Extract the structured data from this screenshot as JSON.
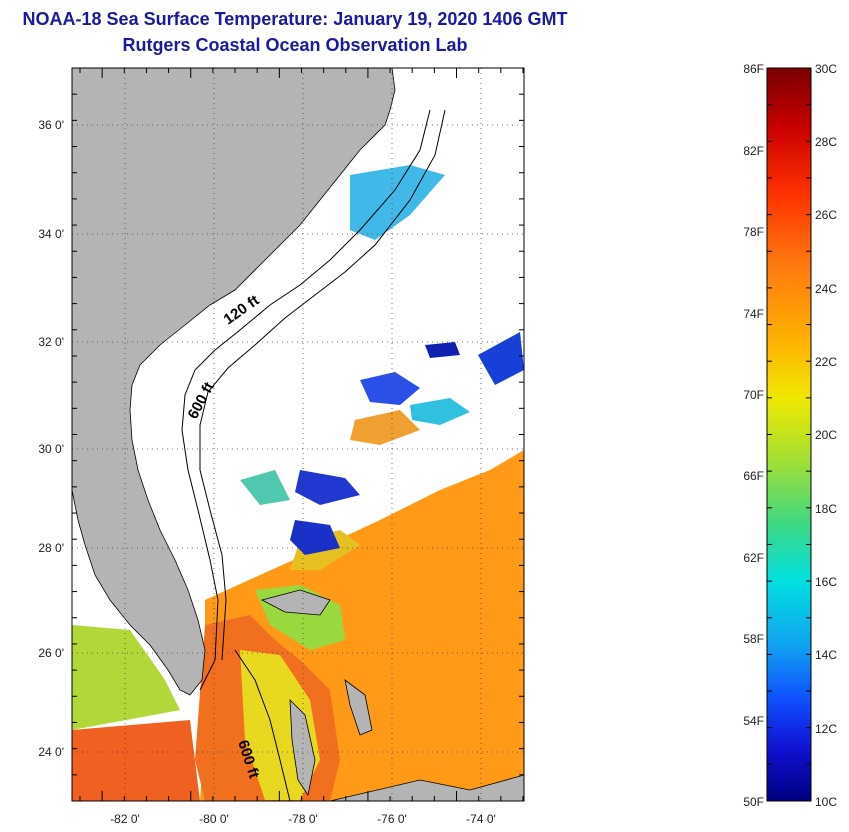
{
  "title": "NOAA-18 Sea Surface Temperature:  January 19, 2020 1406 GMT",
  "subtitle": "Rutgers Coastal Ocean Observation Lab",
  "map": {
    "lon_range": [
      -83,
      -73
    ],
    "lat_range": [
      23,
      37
    ],
    "lon_ticks": [
      "-82 0'",
      "-80 0'",
      "-78 0'",
      "-76 0'",
      "-74 0'"
    ],
    "lat_ticks": [
      "36 0'",
      "34 0'",
      "32 0'",
      "30 0'",
      "28 0'",
      "26 0'",
      "24 0'"
    ],
    "isobath_labels": [
      "120 ft",
      "600 ft",
      "600 ft"
    ],
    "land_color": "#b4b4b4"
  },
  "colorbar": {
    "f_labels": [
      "86F",
      "82F",
      "78F",
      "74F",
      "70F",
      "66F",
      "62F",
      "58F",
      "54F",
      "50F"
    ],
    "c_labels": [
      "30C",
      "28C",
      "26C",
      "24C",
      "22C",
      "20C",
      "18C",
      "16C",
      "14C",
      "12C",
      "10C"
    ],
    "colors": [
      "#7a0000",
      "#c80000",
      "#ff3000",
      "#ff7a10",
      "#ffb000",
      "#f0e800",
      "#a8e030",
      "#40d880",
      "#00e0e0",
      "#10a0f0",
      "#1050ff",
      "#1010d0",
      "#000080"
    ]
  }
}
